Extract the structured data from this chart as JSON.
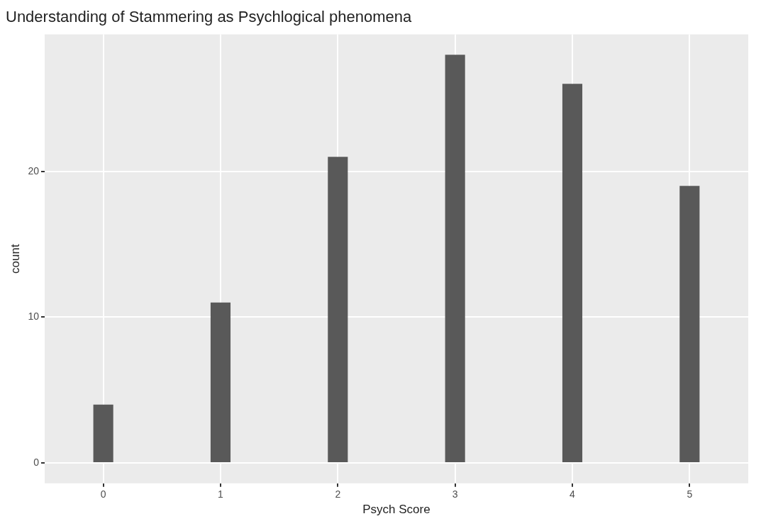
{
  "chart_data": {
    "type": "bar",
    "title": "Understanding of Stammering as Psychlogical phenomena",
    "xlabel": "Psych Score",
    "ylabel": "count",
    "categories": [
      "0",
      "1",
      "2",
      "3",
      "4",
      "5"
    ],
    "values": [
      4,
      11,
      21,
      28,
      26,
      19
    ],
    "color": "#595959",
    "ylim": [
      -1.4,
      29.4
    ],
    "yticks": [
      0,
      10,
      20
    ],
    "grid": true
  }
}
